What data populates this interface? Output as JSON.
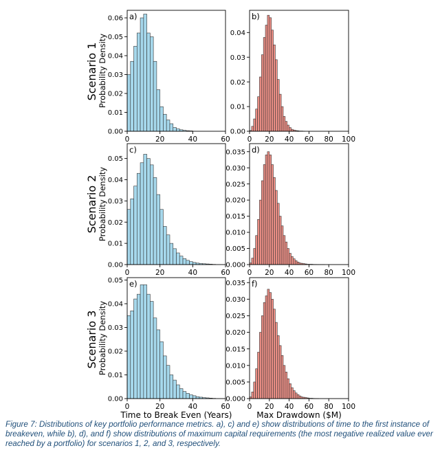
{
  "row_labels": [
    "Scenario 1",
    "Scenario 2",
    "Scenario 3"
  ],
  "caption": "Figure 7: Distributions of key portfolio performance metrics. a), c) and e) show distributions of time to the first instance of breakeven, while b), d), and f) show distributions of maximum capital requirements (the most negative realized value ever reached by a portfolio) for scenarios 1, 2, and 3, respectively.",
  "colors": {
    "blue_fill": "#a6d8ec",
    "red_fill": "#ec8f86",
    "edge": "#333333"
  },
  "chart_data": [
    {
      "panel": "a)",
      "type": "bar",
      "scenario": "Scenario 1",
      "color": "blue",
      "ylabel": "Probability Density",
      "xlabel": "",
      "xlim": [
        0,
        60
      ],
      "ylim": [
        0,
        0.064
      ],
      "xticks": [
        0,
        20,
        40,
        60
      ],
      "xtick_labels": [
        "0",
        "20",
        "40",
        "60"
      ],
      "yticks": [
        0,
        0.01,
        0.02,
        0.03,
        0.04,
        0.05,
        0.06
      ],
      "ytick_labels": [
        "0.00",
        "0.01",
        "0.02",
        "0.03",
        "0.04",
        "0.05",
        "0.06"
      ],
      "bin_start": 0,
      "bin_width": 2,
      "values": [
        0.03,
        0.037,
        0.045,
        0.052,
        0.06,
        0.062,
        0.052,
        0.05,
        0.037,
        0.022,
        0.013,
        0.009,
        0.006,
        0.004,
        0.002,
        0.0013,
        0.0008,
        0.0005,
        0.0003,
        0.0002
      ]
    },
    {
      "panel": "b)",
      "type": "bar",
      "scenario": "Scenario 1",
      "color": "red",
      "ylabel": "",
      "xlabel": "",
      "xlim": [
        0,
        100
      ],
      "ylim": [
        0,
        0.049
      ],
      "xticks": [
        0,
        20,
        40,
        60,
        80,
        100
      ],
      "xtick_labels": [
        "0",
        "20",
        "40",
        "60",
        "80",
        "100"
      ],
      "yticks": [
        0,
        0.01,
        0.02,
        0.03,
        0.04
      ],
      "ytick_labels": [
        "0.00",
        "0.01",
        "0.02",
        "0.03",
        "0.04"
      ],
      "bin_start": 0,
      "bin_width": 2,
      "values": [
        0.0003,
        0.002,
        0.005,
        0.009,
        0.014,
        0.022,
        0.031,
        0.038,
        0.043,
        0.047,
        0.046,
        0.041,
        0.035,
        0.029,
        0.021,
        0.015,
        0.01,
        0.006,
        0.004,
        0.0025,
        0.0015,
        0.0008,
        0.0005,
        0.0003,
        0.0002,
        0.0001,
        0.0001,
        5e-05
      ]
    },
    {
      "panel": "c)",
      "type": "bar",
      "scenario": "Scenario 2",
      "color": "blue",
      "ylabel": "Probability Density",
      "xlabel": "",
      "xlim": [
        0,
        60
      ],
      "ylim": [
        0,
        0.057
      ],
      "xticks": [
        0,
        20,
        40,
        60
      ],
      "xtick_labels": [
        "0",
        "20",
        "40",
        "60"
      ],
      "yticks": [
        0,
        0.01,
        0.02,
        0.03,
        0.04,
        0.05
      ],
      "ytick_labels": [
        "0.00",
        "0.01",
        "0.02",
        "0.03",
        "0.04",
        "0.05"
      ],
      "bin_start": 0,
      "bin_width": 2,
      "values": [
        0.026,
        0.031,
        0.037,
        0.043,
        0.048,
        0.052,
        0.05,
        0.047,
        0.041,
        0.033,
        0.026,
        0.018,
        0.014,
        0.01,
        0.0075,
        0.0055,
        0.004,
        0.0028,
        0.002,
        0.0014,
        0.001,
        0.0007,
        0.0005,
        0.0004,
        0.0003,
        0.0002,
        0.0001
      ]
    },
    {
      "panel": "d)",
      "type": "bar",
      "scenario": "Scenario 2",
      "color": "red",
      "ylabel": "",
      "xlabel": "",
      "xlim": [
        0,
        100
      ],
      "ylim": [
        0,
        0.0375
      ],
      "xticks": [
        0,
        20,
        40,
        60,
        80,
        100
      ],
      "xtick_labels": [
        "0",
        "20",
        "40",
        "60",
        "80",
        "100"
      ],
      "yticks": [
        0,
        0.005,
        0.01,
        0.015,
        0.02,
        0.025,
        0.03,
        0.035
      ],
      "ytick_labels": [
        "0.000",
        "0.005",
        "0.010",
        "0.015",
        "0.020",
        "0.025",
        "0.030",
        "0.035"
      ],
      "bin_start": 0,
      "bin_width": 2,
      "values": [
        0.0005,
        0.002,
        0.005,
        0.009,
        0.014,
        0.02,
        0.026,
        0.031,
        0.034,
        0.035,
        0.034,
        0.031,
        0.027,
        0.023,
        0.019,
        0.015,
        0.012,
        0.009,
        0.007,
        0.005,
        0.0035,
        0.0025,
        0.0018,
        0.0012,
        0.0008,
        0.0005,
        0.0004,
        0.0003,
        0.0002,
        0.0001,
        0.0001,
        0.0001,
        5e-05,
        5e-05,
        3e-05,
        2e-05,
        2e-05,
        1e-05
      ]
    },
    {
      "panel": "e)",
      "type": "bar",
      "scenario": "Scenario 3",
      "color": "blue",
      "ylabel": "Probability Density",
      "xlabel": "Time to Break Even (Years)",
      "xlim": [
        0,
        60
      ],
      "ylim": [
        0,
        0.051
      ],
      "xticks": [
        0,
        20,
        40,
        60
      ],
      "xtick_labels": [
        "0",
        "20",
        "40",
        "60"
      ],
      "yticks": [
        0,
        0.01,
        0.02,
        0.03,
        0.04,
        0.05
      ],
      "ytick_labels": [
        "0.00",
        "0.01",
        "0.02",
        "0.03",
        "0.04",
        "0.05"
      ],
      "bin_start": 0,
      "bin_width": 2,
      "values": [
        0.035,
        0.037,
        0.042,
        0.044,
        0.048,
        0.048,
        0.044,
        0.041,
        0.034,
        0.029,
        0.024,
        0.018,
        0.014,
        0.01,
        0.0078,
        0.0058,
        0.0042,
        0.003,
        0.0022,
        0.0016,
        0.0012,
        0.0008,
        0.0006,
        0.0004,
        0.0003,
        0.0002,
        0.0001
      ]
    },
    {
      "panel": "f)",
      "type": "bar",
      "scenario": "Scenario 3",
      "color": "red",
      "ylabel": "",
      "xlabel": "Max Drawdown ($M)",
      "xlim": [
        0,
        100
      ],
      "ylim": [
        0,
        0.0365
      ],
      "xticks": [
        0,
        20,
        40,
        60,
        80,
        100
      ],
      "xtick_labels": [
        "0",
        "20",
        "40",
        "60",
        "80",
        "100"
      ],
      "yticks": [
        0,
        0.005,
        0.01,
        0.015,
        0.02,
        0.025,
        0.03,
        0.035
      ],
      "ytick_labels": [
        "0.000",
        "0.005",
        "0.010",
        "0.015",
        "0.020",
        "0.025",
        "0.030",
        "0.035"
      ],
      "bin_start": 0,
      "bin_width": 2,
      "values": [
        0.0005,
        0.002,
        0.005,
        0.009,
        0.014,
        0.02,
        0.025,
        0.029,
        0.031,
        0.033,
        0.032,
        0.03,
        0.027,
        0.023,
        0.019,
        0.016,
        0.013,
        0.01,
        0.008,
        0.006,
        0.0045,
        0.0033,
        0.0024,
        0.0017,
        0.0012,
        0.0008,
        0.0005,
        0.0004,
        0.0003,
        0.0002,
        0.0001,
        0.0001,
        5e-05,
        3e-05,
        2e-05
      ]
    }
  ]
}
